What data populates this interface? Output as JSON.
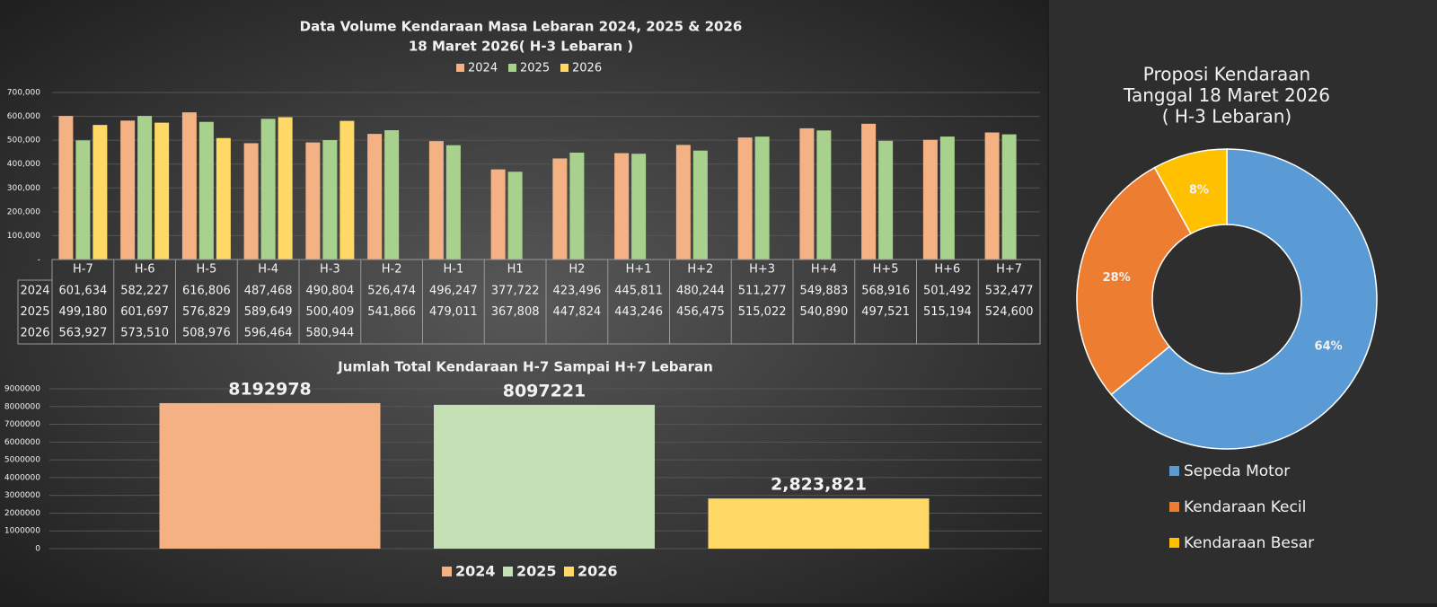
{
  "chart_data": [
    {
      "type": "bar",
      "title": "Data Volume Kendaraan Masa Lebaran 2024, 2025 & 2026",
      "subtitle": "18 Maret 2026( H-3 Lebaran )",
      "categories": [
        "H-7",
        "H-6",
        "H-5",
        "H-4",
        "H-3",
        "H-2",
        "H-1",
        "H1",
        "H2",
        "H+1",
        "H+2",
        "H+3",
        "H+4",
        "H+5",
        "H+6",
        "H+7"
      ],
      "series": [
        {
          "name": "2024",
          "color": "#f4b183",
          "values": [
            601634,
            582227,
            616806,
            487468,
            490804,
            526474,
            496247,
            377722,
            423496,
            445811,
            480244,
            511277,
            549883,
            568916,
            501492,
            532477
          ],
          "value_labels": [
            "601,634",
            "582,227",
            "616,806",
            "487,468",
            "490,804",
            "526,474",
            "496,247",
            "377,722",
            "423,496",
            "445,811",
            "480,244",
            "511,277",
            "549,883",
            "568,916",
            "501,492",
            "532,477"
          ]
        },
        {
          "name": "2025",
          "color": "#a9d18e",
          "values": [
            499180,
            601697,
            576829,
            589649,
            500409,
            541866,
            479011,
            367808,
            447824,
            443246,
            456475,
            515022,
            540890,
            497521,
            515194,
            524600
          ],
          "value_labels": [
            "499,180",
            "601,697",
            "576,829",
            "589,649",
            "500,409",
            "541,866",
            "479,011",
            "367,808",
            "447,824",
            "443,246",
            "456,475",
            "515,022",
            "540,890",
            "497,521",
            "515,194",
            "524,600"
          ]
        },
        {
          "name": "2026",
          "color": "#ffd966",
          "values": [
            563927,
            573510,
            508976,
            596464,
            580944,
            null,
            null,
            null,
            null,
            null,
            null,
            null,
            null,
            null,
            null,
            null
          ],
          "value_labels": [
            "563,927",
            "573,510",
            "508,976",
            "596,464",
            "580,944",
            null,
            null,
            null,
            null,
            null,
            null,
            null,
            null,
            null,
            null,
            null
          ]
        }
      ],
      "ylim": [
        0,
        700000
      ],
      "yticks": [
        {
          "value": 0,
          "label": "-"
        },
        {
          "value": 100000,
          "label": "100,000"
        },
        {
          "value": 200000,
          "label": "200,000"
        },
        {
          "value": 300000,
          "label": "300,000"
        },
        {
          "value": 400000,
          "label": "400,000"
        },
        {
          "value": 500000,
          "label": "500,000"
        },
        {
          "value": 600000,
          "label": "600,000"
        },
        {
          "value": 700000,
          "label": "700,000"
        }
      ],
      "grid": true
    },
    {
      "type": "bar",
      "title": "Jumlah Total Kendaraan H-7 Sampai H+7 Lebaran",
      "series": [
        {
          "name": "2024",
          "color": "#f4b183",
          "values": [
            8192978
          ]
        },
        {
          "name": "2025",
          "color": "#c5e0b4",
          "values": [
            8097221
          ]
        },
        {
          "name": "2026",
          "color": "#ffd966",
          "values": [
            2823821
          ],
          "value_labels": [
            "2,823,821"
          ]
        }
      ],
      "ylim": [
        0,
        9000000
      ],
      "yticks": [
        0,
        1000000,
        2000000,
        3000000,
        4000000,
        5000000,
        6000000,
        7000000,
        8000000,
        9000000
      ],
      "grid": true
    },
    {
      "type": "pie",
      "title": [
        "Proposi Kendaraan",
        "Tanggal 18 Maret 2026",
        "( H-3 Lebaran)"
      ],
      "categories": [
        "Sepeda Motor",
        "Kendaraan Kecil",
        "Kendaraan Besar"
      ],
      "values": [
        64,
        28,
        8
      ],
      "value_labels": [
        "64%",
        "28%",
        "8%"
      ],
      "colors": [
        "#5b9bd5",
        "#ed7d31",
        "#ffc000"
      ]
    }
  ]
}
